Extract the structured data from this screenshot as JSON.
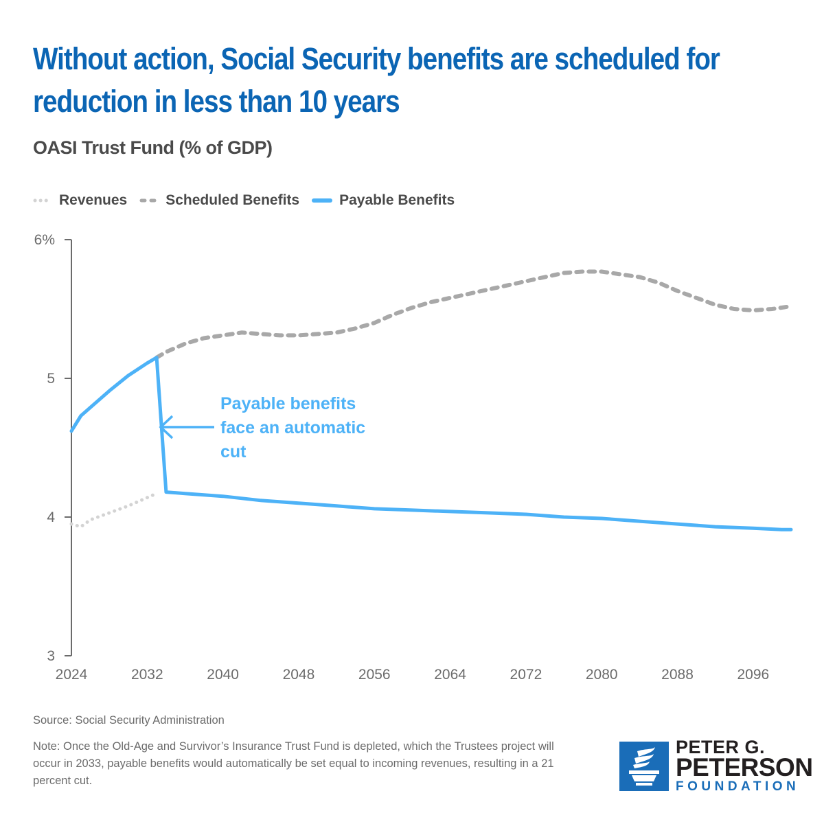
{
  "header": {
    "title": "Without action, Social Security benefits are scheduled for reduction in less than 10 years",
    "subtitle": "OASI Trust Fund (% of GDP)"
  },
  "legend": [
    {
      "label": "Revenues",
      "style": "dotted",
      "color": "#d3d3d3"
    },
    {
      "label": "Scheduled Benefits",
      "style": "dashed",
      "color": "#a8a8a8"
    },
    {
      "label": "Payable Benefits",
      "style": "solid",
      "color": "#4db2f7"
    }
  ],
  "annotation": {
    "lines": [
      "Payable benefits",
      "face an automatic",
      "cut"
    ],
    "color": "#4db2f7"
  },
  "footer": {
    "source": "Source: Social Security Administration",
    "note": "Note: Once the Old-Age and Survivor’s Insurance Trust Fund is depleted, which the Trustees project will occur in 2033, payable benefits would automatically be set equal to incoming revenues, resulting in a 21 percent cut."
  },
  "logo": {
    "line1": "PETER G.",
    "line2": "PETERSON",
    "line3": "FOUNDATION",
    "icon": "torch-icon"
  },
  "chart_data": {
    "type": "line",
    "title": "OASI Trust Fund (% of GDP)",
    "xlabel": "",
    "ylabel": "",
    "xlim": [
      2024,
      2100
    ],
    "ylim": [
      3,
      6
    ],
    "x_ticks": [
      2024,
      2032,
      2040,
      2048,
      2056,
      2064,
      2072,
      2080,
      2088,
      2096
    ],
    "y_ticks": [
      {
        "value": 3,
        "label": "3"
      },
      {
        "value": 4,
        "label": "4"
      },
      {
        "value": 5,
        "label": "5"
      },
      {
        "value": 6,
        "label": "6%"
      }
    ],
    "grid": false,
    "legend_position": "top-left",
    "series": [
      {
        "name": "Revenues",
        "style": "dotted",
        "color": "#d3d3d3",
        "x": [
          2024,
          2025,
          2026,
          2028,
          2030,
          2032,
          2033
        ],
        "values": [
          3.95,
          3.93,
          3.98,
          4.03,
          4.08,
          4.14,
          4.17
        ]
      },
      {
        "name": "Scheduled Benefits",
        "style": "dashed",
        "color": "#a8a8a8",
        "x": [
          2033,
          2034,
          2036,
          2038,
          2040,
          2042,
          2044,
          2046,
          2048,
          2050,
          2052,
          2054,
          2056,
          2058,
          2060,
          2062,
          2064,
          2066,
          2068,
          2070,
          2072,
          2074,
          2076,
          2078,
          2080,
          2082,
          2084,
          2086,
          2088,
          2090,
          2092,
          2094,
          2096,
          2098,
          2100
        ],
        "values": [
          5.15,
          5.19,
          5.25,
          5.29,
          5.31,
          5.33,
          5.32,
          5.31,
          5.31,
          5.32,
          5.33,
          5.36,
          5.4,
          5.46,
          5.51,
          5.55,
          5.58,
          5.61,
          5.64,
          5.67,
          5.7,
          5.73,
          5.76,
          5.77,
          5.77,
          5.75,
          5.73,
          5.69,
          5.63,
          5.58,
          5.53,
          5.5,
          5.49,
          5.5,
          5.52
        ]
      },
      {
        "name": "Payable Benefits",
        "style": "solid",
        "color": "#4db2f7",
        "x": [
          2024,
          2025,
          2026,
          2028,
          2030,
          2032,
          2033,
          2034,
          2036,
          2040,
          2044,
          2048,
          2052,
          2056,
          2060,
          2064,
          2068,
          2072,
          2076,
          2080,
          2084,
          2088,
          2092,
          2096,
          2099,
          2100
        ],
        "values": [
          4.62,
          4.73,
          4.79,
          4.91,
          5.02,
          5.11,
          5.15,
          4.18,
          4.17,
          4.15,
          4.12,
          4.1,
          4.08,
          4.06,
          4.05,
          4.04,
          4.03,
          4.02,
          4.0,
          3.99,
          3.97,
          3.95,
          3.93,
          3.92,
          3.91,
          3.91
        ]
      }
    ]
  }
}
